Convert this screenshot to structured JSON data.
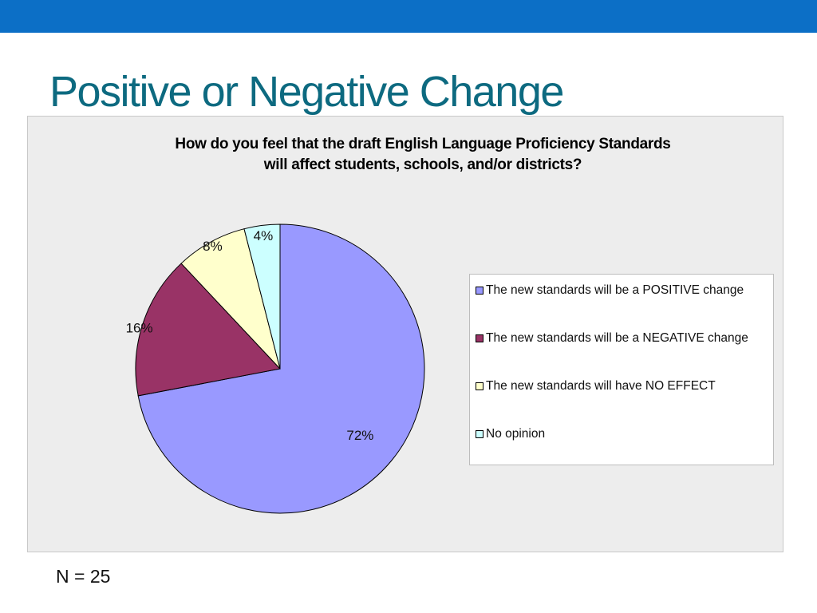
{
  "slide": {
    "title": "Positive or Negative Change",
    "sample_size": "N = 25"
  },
  "colors": {
    "top_bar": "#0c6fc6",
    "title": "#0d6a80",
    "chart_background": "#ededed"
  },
  "chart_data": {
    "type": "pie",
    "title_lines": [
      "How do you feel that the draft English Language Proficiency Standards",
      "will affect students, schools, and/or districts?"
    ],
    "legend_position": "right",
    "categories": [
      "The new standards will be a POSITIVE change",
      "The new standards will be a NEGATIVE change",
      "The new standards will have NO EFFECT",
      "No opinion"
    ],
    "values": [
      72,
      16,
      8,
      4
    ],
    "labels": [
      "72%",
      "16%",
      "8%",
      "4%"
    ],
    "colors": [
      "#9999ff",
      "#993366",
      "#ffffcc",
      "#ccffff"
    ]
  }
}
